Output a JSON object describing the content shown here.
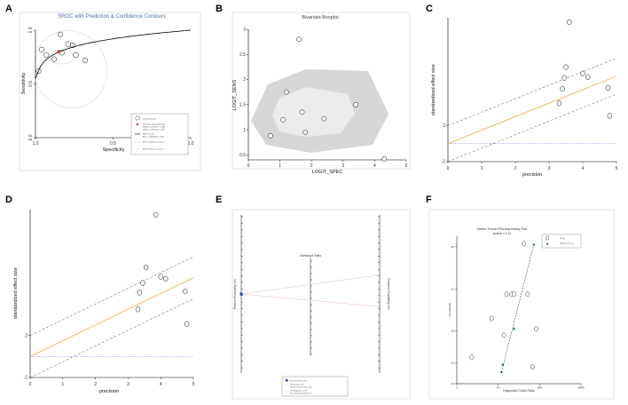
{
  "panels": {
    "A": {
      "letter": "A"
    },
    "B": {
      "letter": "B"
    },
    "C": {
      "letter": "C"
    },
    "D": {
      "letter": "D"
    },
    "E": {
      "letter": "E"
    },
    "F": {
      "letter": "F"
    }
  },
  "chart_data": [
    {
      "id": "A",
      "type": "scatter",
      "title": "SROC with Prediction & Confidence Contours",
      "xlabel": "Specificity",
      "ylabel": "Sensitivity",
      "xlim": [
        1.0,
        0.0
      ],
      "ylim": [
        0.0,
        1.0
      ],
      "xticks": [
        "1.0",
        "0.5",
        "0.0"
      ],
      "yticks": [
        "1.0",
        "0.5",
        "0.0"
      ],
      "studies": {
        "x": [
          0.98,
          0.96,
          0.93,
          0.88,
          0.84,
          0.83,
          0.79,
          0.76,
          0.74,
          0.68
        ],
        "y": [
          0.62,
          0.82,
          0.77,
          0.73,
          0.96,
          0.79,
          0.87,
          0.86,
          0.77,
          0.72
        ]
      },
      "summary_point": {
        "x": 0.85,
        "y": 0.8
      },
      "legend": [
        "Observed Data",
        "Summary Operating Point",
        "SENS = 0.78 [0.71 - 0.84]",
        "SPEC = 0.86 [0.79 - 0.91]",
        "SROC Curve",
        "AUC = 0.88 [0.85 - 0.91]",
        "95% Confidence Contour",
        "95% Prediction Contour"
      ]
    },
    {
      "id": "B",
      "type": "scatter",
      "title": "Bivariate Boxplot",
      "xlabel": "LOGIT_SPEC",
      "ylabel": "LOGIT_SENS",
      "xlim": [
        0,
        5
      ],
      "ylim": [
        0.4,
        3.0
      ],
      "xticks": [
        "0",
        "1",
        "2",
        "3",
        "4",
        "5"
      ],
      "yticks": [
        "0.5",
        "1",
        "1.5",
        "2",
        "2.5",
        "3"
      ],
      "points": {
        "x": [
          0.7,
          1.1,
          1.2,
          1.6,
          1.7,
          1.8,
          2.4,
          3.4,
          4.3
        ],
        "y": [
          0.88,
          1.2,
          1.75,
          2.8,
          1.35,
          0.95,
          1.22,
          1.5,
          0.42
        ]
      }
    },
    {
      "id": "C",
      "type": "scatter",
      "xlabel": "precision",
      "ylabel": "standardized effect size",
      "xlim": [
        0,
        5
      ],
      "ylim": [
        -2,
        14
      ],
      "xticks": [
        "0",
        "1",
        "2",
        "3",
        "4",
        "5"
      ],
      "yticks": [
        "-2",
        "2"
      ],
      "points": {
        "x": [
          3.3,
          3.4,
          3.45,
          3.5,
          3.6,
          4.0,
          4.15,
          4.75,
          4.8
        ],
        "y": [
          4.5,
          6.1,
          7.3,
          8.5,
          13.5,
          7.8,
          7.4,
          6.2,
          3.1
        ]
      },
      "regression": {
        "intercept": 0.0,
        "slope": 1.5
      },
      "ci_offset": 2.0,
      "reference_y": 0.0
    },
    {
      "id": "D",
      "type": "scatter",
      "xlabel": "precision",
      "ylabel": "standardized effect size",
      "xlim": [
        0,
        5
      ],
      "ylim": [
        -2,
        14
      ],
      "xticks": [
        "0",
        "1",
        "2",
        "3",
        "4",
        "5"
      ],
      "yticks": [
        "-2",
        "2"
      ],
      "points": {
        "x": [
          3.3,
          3.35,
          3.45,
          3.55,
          3.85,
          4.0,
          4.15,
          4.75,
          4.8
        ],
        "y": [
          4.5,
          6.1,
          7.0,
          8.5,
          13.5,
          7.6,
          7.4,
          6.2,
          3.1
        ]
      },
      "regression": {
        "intercept": 0.0,
        "slope": 1.5
      },
      "ci_offset": 2.0,
      "reference_y": 0.0
    },
    {
      "id": "E",
      "type": "line",
      "title": "Likelihood Ratio",
      "xlabel": "",
      "ylabel_left": "Pretest Probability (%)",
      "ylabel_right": "Posttest Probability (%)",
      "prior_y": 0.5,
      "lines": [
        {
          "to_y": 0.42
        },
        {
          "to_y": 0.62
        }
      ],
      "legend": [
        "Prior Prob (%) = 50",
        "LR_Positive = 5",
        "Post_Prob_Pos (%) = 84",
        "LR_Negative = 0.26",
        "Post_Prob_Neg (%) = 21"
      ]
    },
    {
      "id": "F",
      "type": "scatter",
      "title": "Deeks' Funnel Plot Asymmetry Test",
      "subtitle": "pvalue = 0.12",
      "xlabel": "Diagnostic Odds Ratio",
      "ylabel": "1/root(ESS)",
      "xlim": [
        0,
        1000
      ],
      "ylim": [
        0.13,
        0.27
      ],
      "xticks": [
        "1",
        "10",
        "100",
        "1000"
      ],
      "yticks": [
        ".26",
        ".22",
        ".18",
        ".15",
        ".13"
      ],
      "points": {
        "x": [
          0.12,
          0.28,
          0.38,
          0.4,
          0.44,
          0.46,
          0.54,
          0.57,
          0.61,
          0.64
        ],
        "y": [
          0.155,
          0.192,
          0.176,
          0.215,
          0.215,
          0.215,
          0.263,
          0.215,
          0.146,
          0.182
        ]
      },
      "legend": [
        "Study",
        "Regression Line"
      ]
    }
  ]
}
